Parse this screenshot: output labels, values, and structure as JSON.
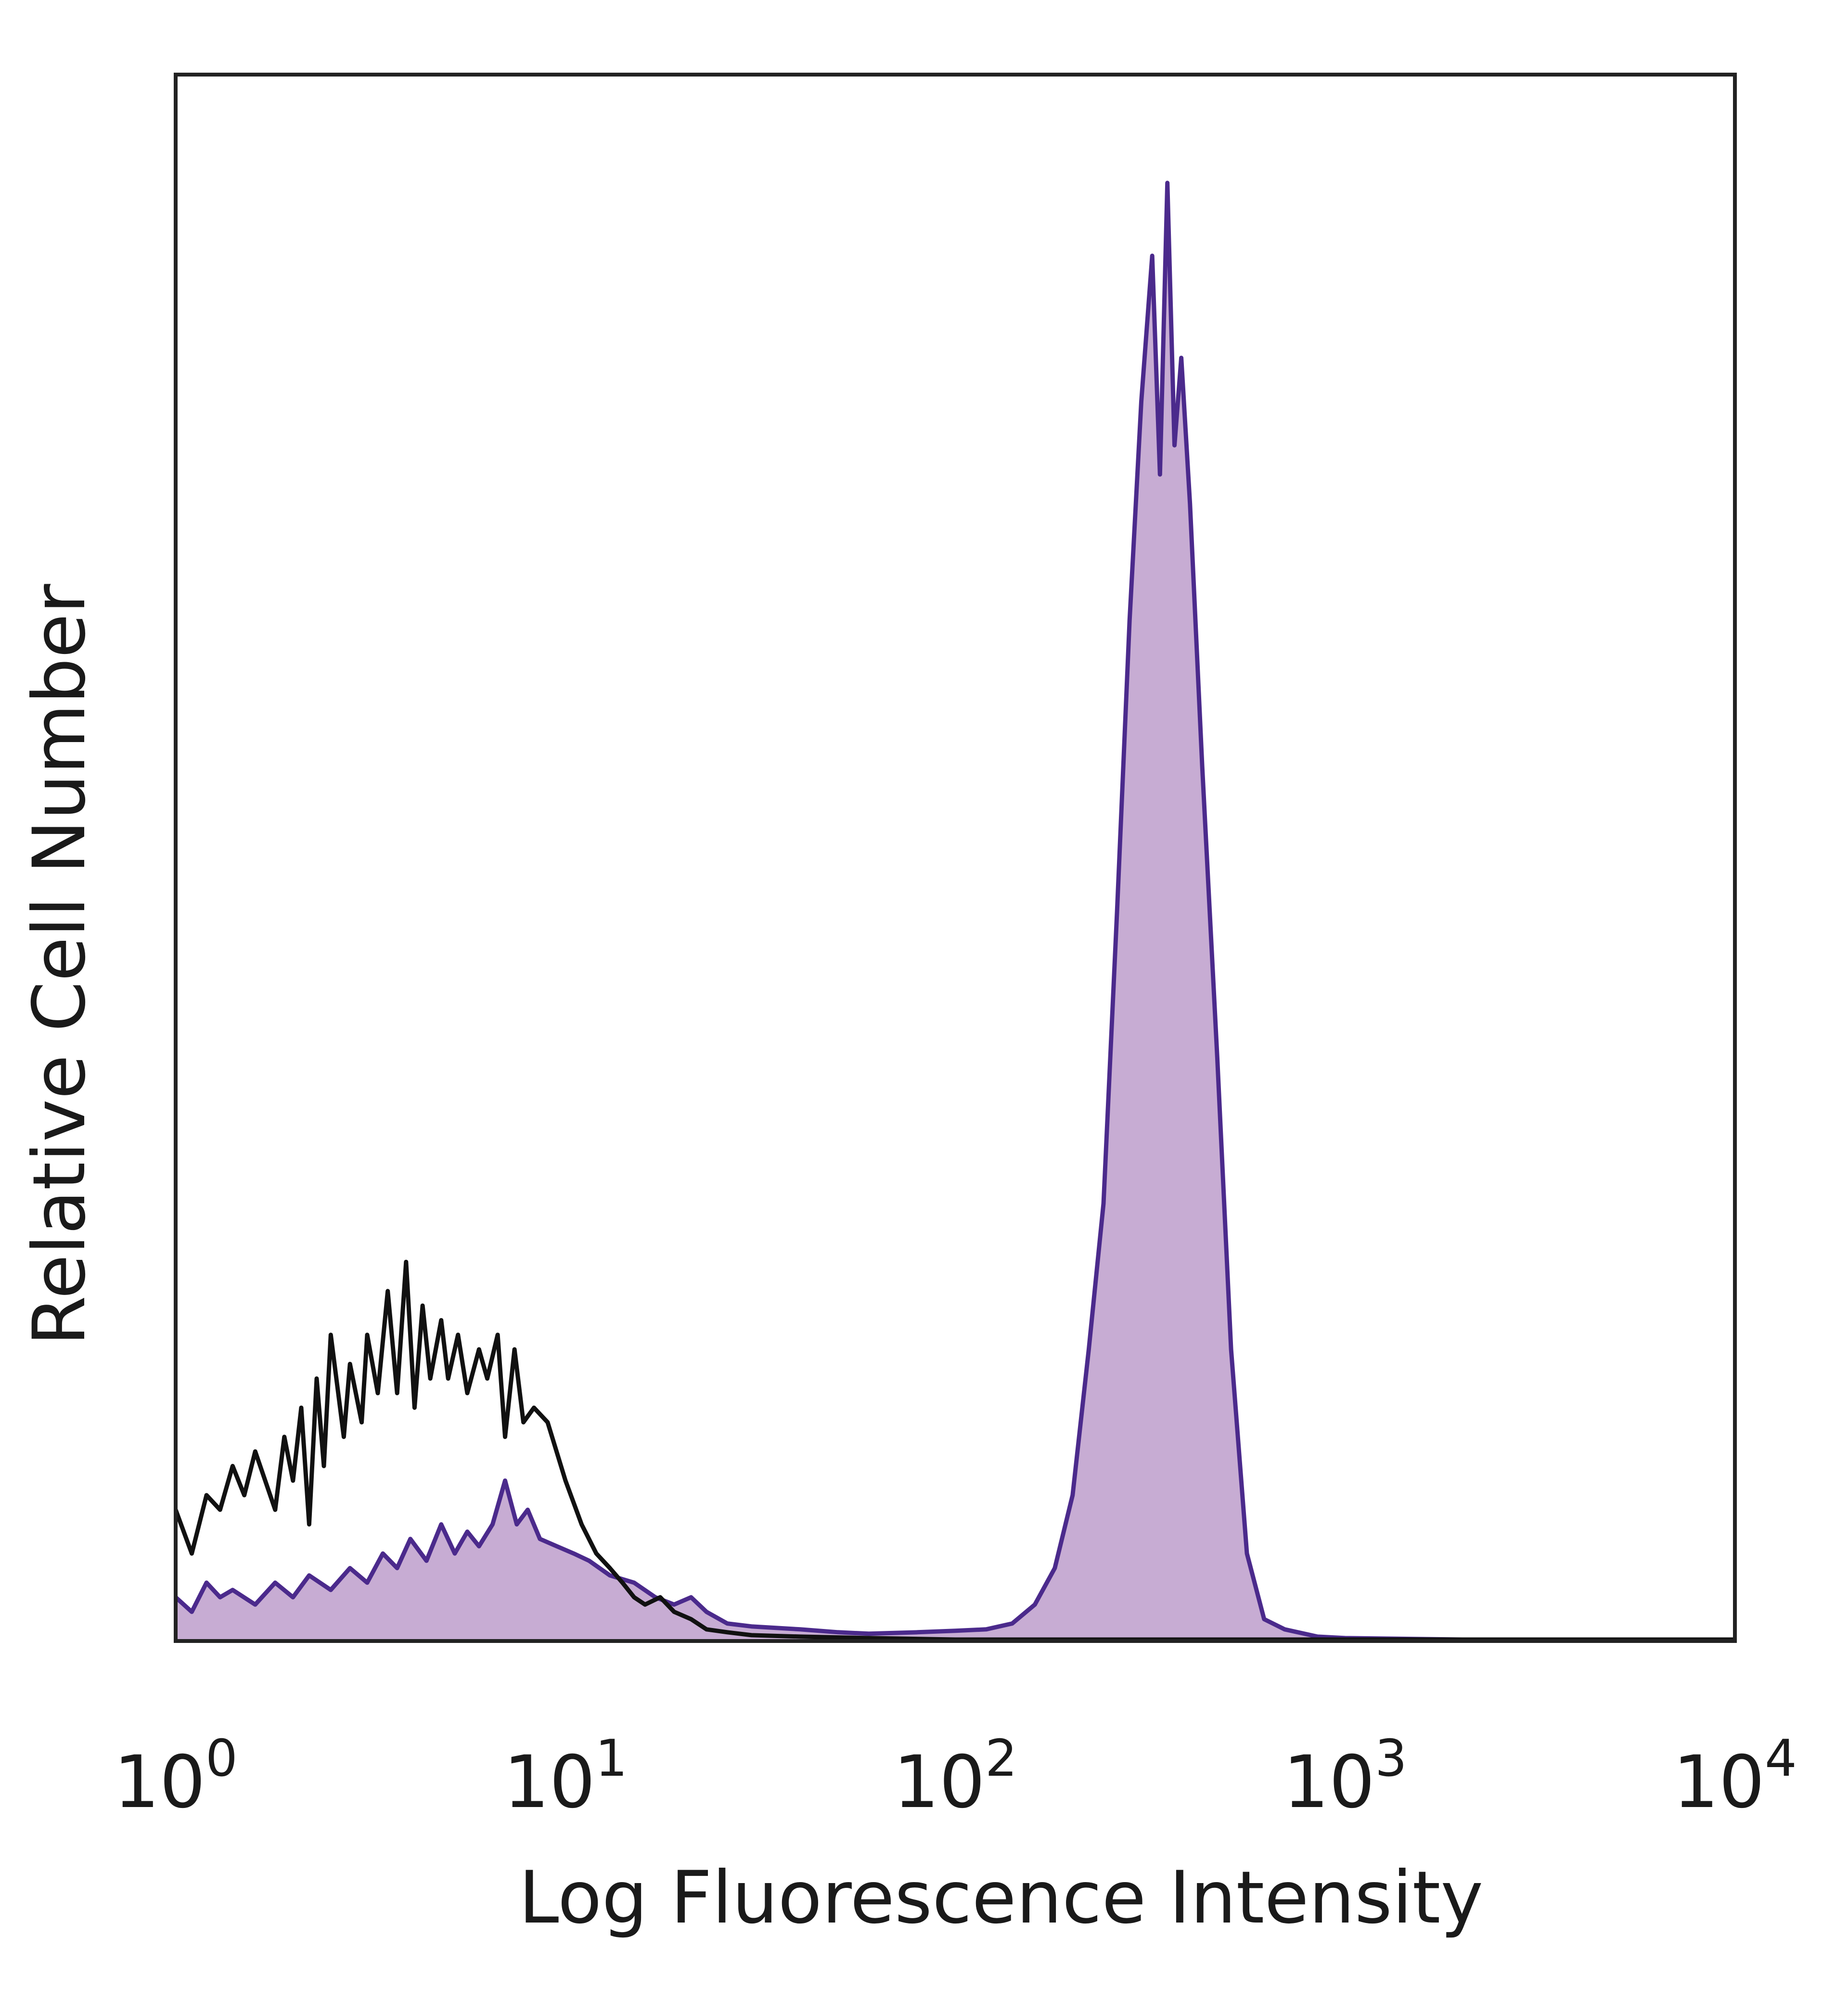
{
  "chart_data": {
    "type": "area",
    "xscale": "log",
    "xlim": [
      1,
      10000
    ],
    "ylim": [
      0,
      100
    ],
    "grid": false,
    "legend": "none",
    "xlabel": "Log Fluorescence Intensity",
    "ylabel": "Relative Cell Number",
    "x_ticks": [
      {
        "base": "10",
        "exp": "0",
        "value": 1
      },
      {
        "base": "10",
        "exp": "1",
        "value": 10
      },
      {
        "base": "10",
        "exp": "2",
        "value": 100
      },
      {
        "base": "10",
        "exp": "3",
        "value": 1000
      },
      {
        "base": "10",
        "exp": "4",
        "value": 10000
      }
    ],
    "series": [
      {
        "style": "black-outline",
        "color": "#111111",
        "points": [
          [
            1.0,
            9
          ],
          [
            1.1,
            6
          ],
          [
            1.2,
            10
          ],
          [
            1.3,
            9
          ],
          [
            1.4,
            12
          ],
          [
            1.5,
            10
          ],
          [
            1.6,
            13
          ],
          [
            1.8,
            9
          ],
          [
            1.9,
            14
          ],
          [
            2.0,
            11
          ],
          [
            2.1,
            16
          ],
          [
            2.2,
            8
          ],
          [
            2.3,
            18
          ],
          [
            2.4,
            12
          ],
          [
            2.5,
            21
          ],
          [
            2.7,
            14
          ],
          [
            2.8,
            19
          ],
          [
            3.0,
            15
          ],
          [
            3.1,
            21
          ],
          [
            3.3,
            17
          ],
          [
            3.5,
            24
          ],
          [
            3.7,
            17
          ],
          [
            3.9,
            26
          ],
          [
            4.1,
            16
          ],
          [
            4.3,
            23
          ],
          [
            4.5,
            18
          ],
          [
            4.8,
            22
          ],
          [
            5.0,
            18
          ],
          [
            5.3,
            21
          ],
          [
            5.6,
            17
          ],
          [
            6.0,
            20
          ],
          [
            6.3,
            18
          ],
          [
            6.7,
            21
          ],
          [
            7.0,
            14
          ],
          [
            7.4,
            20
          ],
          [
            7.8,
            15
          ],
          [
            8.3,
            16
          ],
          [
            9.0,
            15
          ],
          [
            10.0,
            11
          ],
          [
            11.0,
            8
          ],
          [
            12.0,
            6
          ],
          [
            13.0,
            5
          ],
          [
            14.0,
            4
          ],
          [
            15.0,
            3
          ],
          [
            16.0,
            2.5
          ],
          [
            17.5,
            3
          ],
          [
            19.0,
            2
          ],
          [
            21.0,
            1.5
          ],
          [
            23.0,
            0.8
          ],
          [
            26.0,
            0.6
          ],
          [
            30.0,
            0.4
          ],
          [
            40.0,
            0.3
          ],
          [
            60.0,
            0.2
          ],
          [
            100.0,
            0.1
          ],
          [
            200.0,
            0.1
          ],
          [
            1000.0,
            0.1
          ],
          [
            10000.0,
            0.1
          ]
        ]
      },
      {
        "style": "purple-filled",
        "color": "#4b2a8c",
        "fill": "#c7acd3",
        "points": [
          [
            1.0,
            3
          ],
          [
            1.1,
            2
          ],
          [
            1.2,
            4
          ],
          [
            1.3,
            3
          ],
          [
            1.4,
            3.5
          ],
          [
            1.6,
            2.5
          ],
          [
            1.8,
            4
          ],
          [
            2.0,
            3
          ],
          [
            2.2,
            4.5
          ],
          [
            2.5,
            3.5
          ],
          [
            2.8,
            5
          ],
          [
            3.1,
            4
          ],
          [
            3.4,
            6
          ],
          [
            3.7,
            5
          ],
          [
            4.0,
            7
          ],
          [
            4.4,
            5.5
          ],
          [
            4.8,
            8
          ],
          [
            5.2,
            6
          ],
          [
            5.6,
            7.5
          ],
          [
            6.0,
            6.5
          ],
          [
            6.5,
            8
          ],
          [
            7.0,
            11
          ],
          [
            7.5,
            8
          ],
          [
            8.0,
            9
          ],
          [
            8.6,
            7
          ],
          [
            9.5,
            6.5
          ],
          [
            10.5,
            6
          ],
          [
            11.5,
            5.5
          ],
          [
            13.0,
            4.5
          ],
          [
            15.0,
            4
          ],
          [
            17.0,
            3
          ],
          [
            19.0,
            2.5
          ],
          [
            21.0,
            3
          ],
          [
            23.0,
            2
          ],
          [
            26.0,
            1.2
          ],
          [
            30.0,
            1
          ],
          [
            40.0,
            0.8
          ],
          [
            50.0,
            0.6
          ],
          [
            60.0,
            0.5
          ],
          [
            80.0,
            0.6
          ],
          [
            100.0,
            0.7
          ],
          [
            120.0,
            0.8
          ],
          [
            140.0,
            1.2
          ],
          [
            160.0,
            2.5
          ],
          [
            180.0,
            5
          ],
          [
            200.0,
            10
          ],
          [
            220.0,
            20
          ],
          [
            240.0,
            30
          ],
          [
            260.0,
            50
          ],
          [
            280.0,
            70
          ],
          [
            300.0,
            85
          ],
          [
            320.0,
            95
          ],
          [
            335.0,
            80
          ],
          [
            350.0,
            100
          ],
          [
            365.0,
            82
          ],
          [
            380.0,
            88
          ],
          [
            400.0,
            78
          ],
          [
            430.0,
            60
          ],
          [
            470.0,
            40
          ],
          [
            510.0,
            20
          ],
          [
            560.0,
            6
          ],
          [
            620.0,
            1.5
          ],
          [
            700.0,
            0.8
          ],
          [
            850.0,
            0.3
          ],
          [
            1000.0,
            0.2
          ],
          [
            2000.0,
            0.1
          ],
          [
            10000.0,
            0.1
          ]
        ]
      }
    ]
  }
}
